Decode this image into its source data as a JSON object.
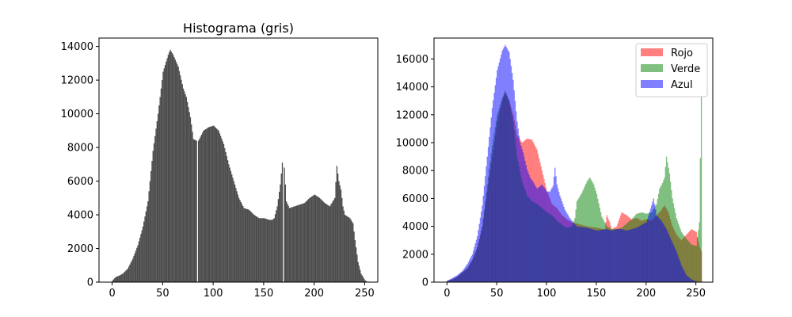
{
  "figure": {
    "background": "#ffffff"
  },
  "chart_data": [
    {
      "type": "bar",
      "title": "Histograma (gris)",
      "xlabel": "",
      "ylabel": "",
      "xlim": [
        -13,
        263
      ],
      "ylim": [
        0,
        14500
      ],
      "xticks": [
        0,
        50,
        100,
        150,
        200,
        250
      ],
      "yticks": [
        0,
        2000,
        4000,
        6000,
        8000,
        10000,
        12000,
        14000
      ],
      "series": [
        {
          "color": "#4c4c4c",
          "bins": 256,
          "points": [
            [
              0,
              100
            ],
            [
              3,
              300
            ],
            [
              7,
              400
            ],
            [
              10,
              500
            ],
            [
              15,
              800
            ],
            [
              20,
              1400
            ],
            [
              25,
              2200
            ],
            [
              30,
              3300
            ],
            [
              35,
              4800
            ],
            [
              40,
              7800
            ],
            [
              45,
              10000
            ],
            [
              50,
              12500
            ],
            [
              55,
              13500
            ],
            [
              57,
              13800
            ],
            [
              60,
              13500
            ],
            [
              65,
              12800
            ],
            [
              70,
              11500
            ],
            [
              73,
              11000
            ],
            [
              77,
              9800
            ],
            [
              80,
              8500
            ],
            [
              83,
              8400
            ],
            [
              84,
              0
            ],
            [
              85,
              8400
            ],
            [
              90,
              9000
            ],
            [
              95,
              9200
            ],
            [
              100,
              9300
            ],
            [
              105,
              9000
            ],
            [
              110,
              8200
            ],
            [
              115,
              7000
            ],
            [
              120,
              6000
            ],
            [
              125,
              5000
            ],
            [
              130,
              4400
            ],
            [
              135,
              4300
            ],
            [
              140,
              4000
            ],
            [
              145,
              3800
            ],
            [
              150,
              3800
            ],
            [
              155,
              3700
            ],
            [
              158,
              3700
            ],
            [
              160,
              3800
            ],
            [
              163,
              4500
            ],
            [
              166,
              5800
            ],
            [
              168,
              7100
            ],
            [
              169,
              0
            ],
            [
              170,
              6800
            ],
            [
              172,
              4800
            ],
            [
              175,
              4400
            ],
            [
              180,
              4500
            ],
            [
              185,
              4600
            ],
            [
              190,
              4700
            ],
            [
              195,
              5000
            ],
            [
              200,
              5200
            ],
            [
              205,
              5000
            ],
            [
              210,
              4700
            ],
            [
              215,
              4500
            ],
            [
              220,
              5000
            ],
            [
              222,
              6900
            ],
            [
              224,
              6000
            ],
            [
              226,
              5500
            ],
            [
              228,
              4500
            ],
            [
              230,
              4000
            ],
            [
              235,
              3800
            ],
            [
              238,
              3500
            ],
            [
              240,
              2500
            ],
            [
              243,
              1200
            ],
            [
              246,
              500
            ],
            [
              250,
              100
            ],
            [
              252,
              0
            ],
            [
              255,
              0
            ]
          ]
        }
      ]
    },
    {
      "type": "bar",
      "title": "",
      "xlabel": "",
      "ylabel": "",
      "xlim": [
        -13,
        267
      ],
      "ylim": [
        0,
        17500
      ],
      "xticks": [
        0,
        50,
        100,
        150,
        200,
        250
      ],
      "yticks": [
        0,
        2000,
        4000,
        6000,
        8000,
        10000,
        12000,
        14000,
        16000
      ],
      "legend": {
        "placement": "upper right"
      },
      "series": [
        {
          "name": "Rojo",
          "color": "#ff0000",
          "alpha": 0.5,
          "bins": 256,
          "points": [
            [
              0,
              100
            ],
            [
              5,
              200
            ],
            [
              10,
              400
            ],
            [
              15,
              700
            ],
            [
              20,
              1000
            ],
            [
              25,
              1600
            ],
            [
              30,
              2500
            ],
            [
              35,
              4000
            ],
            [
              40,
              6500
            ],
            [
              45,
              9000
            ],
            [
              50,
              11500
            ],
            [
              55,
              13000
            ],
            [
              58,
              13600
            ],
            [
              62,
              13000
            ],
            [
              66,
              12000
            ],
            [
              70,
              10500
            ],
            [
              75,
              10000
            ],
            [
              80,
              10300
            ],
            [
              85,
              10200
            ],
            [
              90,
              9500
            ],
            [
              95,
              8000
            ],
            [
              100,
              6500
            ],
            [
              105,
              5600
            ],
            [
              110,
              5300
            ],
            [
              115,
              4800
            ],
            [
              120,
              4500
            ],
            [
              125,
              4300
            ],
            [
              130,
              4200
            ],
            [
              140,
              4000
            ],
            [
              150,
              3900
            ],
            [
              158,
              3800
            ],
            [
              160,
              4800
            ],
            [
              163,
              4300
            ],
            [
              165,
              3800
            ],
            [
              170,
              4000
            ],
            [
              175,
              5000
            ],
            [
              180,
              4800
            ],
            [
              185,
              4500
            ],
            [
              190,
              4600
            ],
            [
              195,
              4400
            ],
            [
              200,
              4500
            ],
            [
              205,
              4400
            ],
            [
              210,
              4800
            ],
            [
              214,
              5100
            ],
            [
              218,
              5500
            ],
            [
              222,
              5000
            ],
            [
              226,
              4000
            ],
            [
              230,
              3400
            ],
            [
              235,
              3000
            ],
            [
              240,
              3400
            ],
            [
              245,
              3800
            ],
            [
              250,
              3600
            ],
            [
              253,
              2600
            ],
            [
              255,
              2200
            ]
          ]
        },
        {
          "name": "Verde",
          "color": "#008000",
          "alpha": 0.5,
          "bins": 256,
          "points": [
            [
              0,
              100
            ],
            [
              5,
              200
            ],
            [
              10,
              400
            ],
            [
              15,
              700
            ],
            [
              20,
              1000
            ],
            [
              25,
              1600
            ],
            [
              30,
              2500
            ],
            [
              35,
              4000
            ],
            [
              40,
              7000
            ],
            [
              45,
              9800
            ],
            [
              50,
              12000
            ],
            [
              55,
              13200
            ],
            [
              58,
              13700
            ],
            [
              62,
              13000
            ],
            [
              66,
              11500
            ],
            [
              70,
              9000
            ],
            [
              75,
              7200
            ],
            [
              80,
              6200
            ],
            [
              85,
              5800
            ],
            [
              90,
              5600
            ],
            [
              95,
              5300
            ],
            [
              100,
              5000
            ],
            [
              105,
              4800
            ],
            [
              110,
              4400
            ],
            [
              115,
              4100
            ],
            [
              120,
              3900
            ],
            [
              125,
              4000
            ],
            [
              128,
              4600
            ],
            [
              130,
              5800
            ],
            [
              135,
              6400
            ],
            [
              140,
              7200
            ],
            [
              143,
              7500
            ],
            [
              147,
              7000
            ],
            [
              150,
              6300
            ],
            [
              155,
              4700
            ],
            [
              160,
              4000
            ],
            [
              165,
              3800
            ],
            [
              170,
              3800
            ],
            [
              175,
              3900
            ],
            [
              180,
              4200
            ],
            [
              185,
              4500
            ],
            [
              190,
              4900
            ],
            [
              195,
              5000
            ],
            [
              200,
              4900
            ],
            [
              205,
              5000
            ],
            [
              210,
              5600
            ],
            [
              213,
              6700
            ],
            [
              216,
              7100
            ],
            [
              218,
              7500
            ],
            [
              220,
              9000
            ],
            [
              223,
              7800
            ],
            [
              226,
              6000
            ],
            [
              230,
              4600
            ],
            [
              235,
              3600
            ],
            [
              240,
              3100
            ],
            [
              245,
              2700
            ],
            [
              250,
              2600
            ],
            [
              253,
              4300
            ],
            [
              254,
              8900
            ],
            [
              255,
              13400
            ]
          ]
        },
        {
          "name": "Azul",
          "color": "#0000ff",
          "alpha": 0.5,
          "bins": 256,
          "points": [
            [
              0,
              100
            ],
            [
              5,
              300
            ],
            [
              10,
              500
            ],
            [
              15,
              800
            ],
            [
              20,
              1300
            ],
            [
              25,
              2000
            ],
            [
              30,
              3300
            ],
            [
              35,
              5500
            ],
            [
              40,
              9000
            ],
            [
              45,
              12500
            ],
            [
              50,
              15200
            ],
            [
              55,
              16600
            ],
            [
              58,
              17000
            ],
            [
              62,
              16500
            ],
            [
              66,
              14500
            ],
            [
              70,
              11500
            ],
            [
              73,
              10000
            ],
            [
              76,
              9300
            ],
            [
              80,
              8100
            ],
            [
              83,
              7500
            ],
            [
              86,
              7200
            ],
            [
              90,
              6700
            ],
            [
              95,
              7000
            ],
            [
              100,
              6500
            ],
            [
              103,
              6500
            ],
            [
              106,
              6900
            ],
            [
              108,
              8200
            ],
            [
              110,
              7000
            ],
            [
              113,
              6200
            ],
            [
              118,
              5200
            ],
            [
              122,
              4700
            ],
            [
              126,
              4300
            ],
            [
              130,
              4000
            ],
            [
              140,
              3900
            ],
            [
              150,
              3700
            ],
            [
              160,
              3800
            ],
            [
              165,
              3700
            ],
            [
              170,
              3800
            ],
            [
              175,
              3800
            ],
            [
              180,
              3700
            ],
            [
              190,
              3900
            ],
            [
              200,
              4300
            ],
            [
              205,
              5500
            ],
            [
              207,
              6000
            ],
            [
              210,
              4800
            ],
            [
              215,
              4400
            ],
            [
              220,
              3800
            ],
            [
              225,
              3000
            ],
            [
              230,
              2200
            ],
            [
              235,
              1200
            ],
            [
              240,
              500
            ],
            [
              245,
              200
            ],
            [
              250,
              50
            ],
            [
              255,
              0
            ]
          ]
        }
      ]
    }
  ]
}
